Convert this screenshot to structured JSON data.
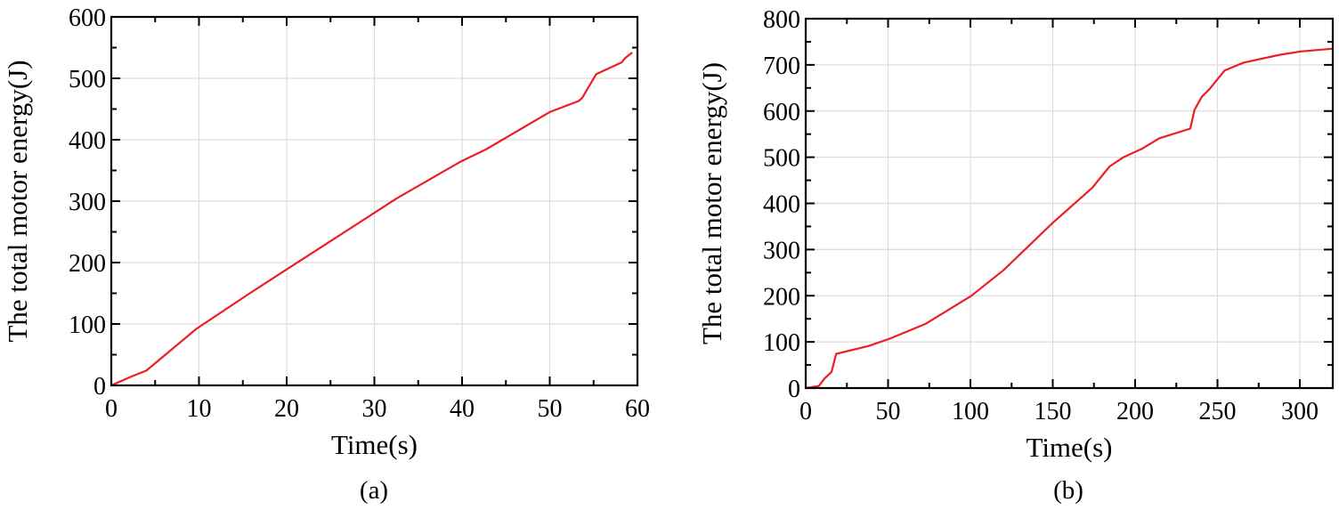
{
  "chart_data": [
    {
      "type": "line",
      "caption": "(a)",
      "xlabel": "Time(s)",
      "ylabel": "The total motor energy(J)",
      "xlim": [
        0,
        60
      ],
      "ylim": [
        0,
        600
      ],
      "xticks": [
        0,
        10,
        20,
        30,
        40,
        50,
        60
      ],
      "yticks": [
        0,
        100,
        200,
        300,
        400,
        500,
        600
      ],
      "grid": true,
      "line_color": "#ee1c25",
      "x": [
        0,
        2.4,
        4,
        9.7,
        15.8,
        19.9,
        26,
        32.5,
        39.8,
        42.7,
        50,
        53.3,
        53.7,
        55.3,
        58.2,
        58.6,
        59.4
      ],
      "y": [
        0,
        15,
        24,
        92,
        150,
        188,
        244,
        304,
        364,
        384,
        445,
        463,
        468,
        507,
        526,
        533,
        542
      ]
    },
    {
      "type": "line",
      "caption": "(b)",
      "xlabel": "Time(s)",
      "ylabel": "The total motor energy(J)",
      "xlim": [
        0,
        320
      ],
      "ylim": [
        0,
        800
      ],
      "xticks": [
        0,
        50,
        100,
        150,
        200,
        250,
        300
      ],
      "yticks": [
        0,
        100,
        200,
        300,
        400,
        500,
        600,
        700,
        800
      ],
      "grid": true,
      "line_color": "#ee1c25",
      "x": [
        0,
        8,
        11.4,
        15.7,
        18.5,
        38,
        51,
        72.7,
        100.6,
        120,
        150,
        174,
        184.5,
        193,
        204,
        214.6,
        233.5,
        236,
        240.5,
        245,
        254.4,
        266,
        288,
        300.6,
        320
      ],
      "y": [
        0,
        4.5,
        20.6,
        35,
        74,
        91,
        107,
        139,
        200,
        255,
        358,
        434,
        480,
        500,
        518,
        541,
        562,
        602,
        631,
        647,
        688,
        705,
        722,
        729,
        735
      ]
    }
  ]
}
